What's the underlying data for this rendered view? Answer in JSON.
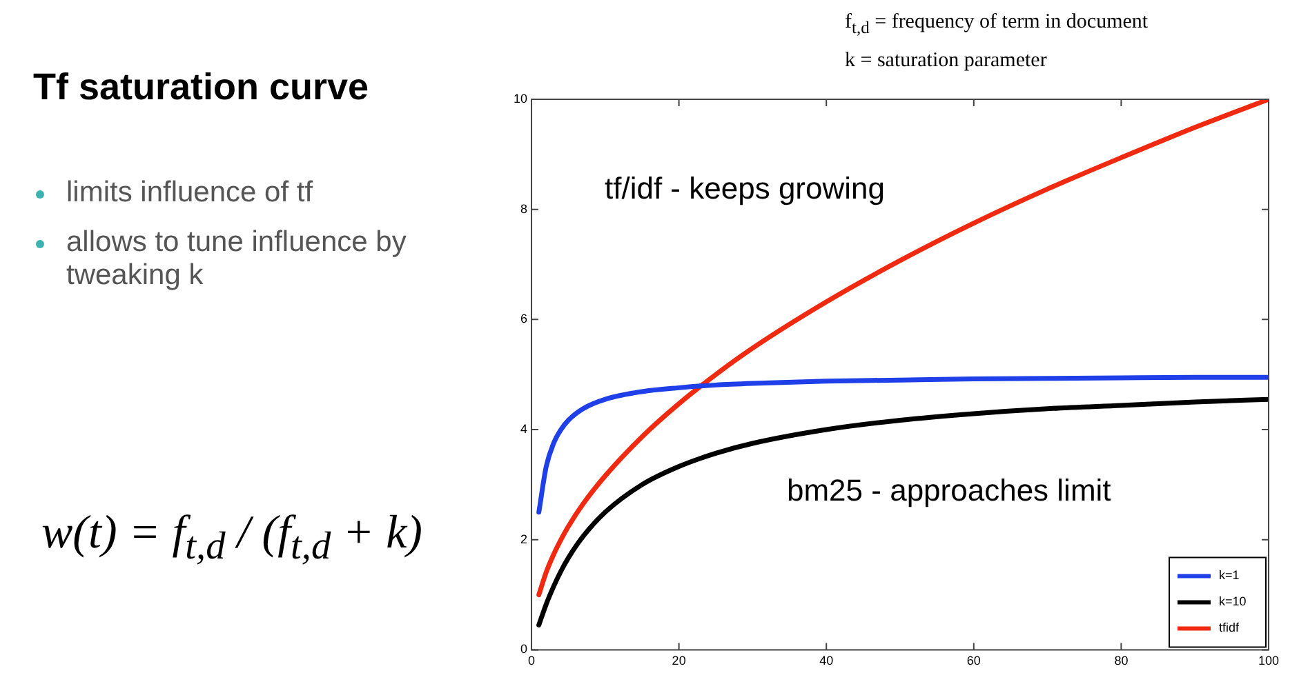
{
  "chart_data": {
    "type": "line",
    "title": "Tf saturation curve",
    "annotations": [
      "limits influence of tf",
      "allows to tune influence by tweaking k",
      "w(t) = f$_{t,d}$ / (f$_{t,d}$ + k)",
      "f$_{t,d}$ = frequency of term in document",
      "k = saturation parameter",
      "tf/idf - keeps growing",
      "bm25 - approaches limit"
    ],
    "x": [
      1,
      2,
      3,
      4,
      5,
      7,
      10,
      15,
      20,
      25,
      30,
      40,
      50,
      60,
      70,
      80,
      90,
      100
    ],
    "series": [
      {
        "name": "k=1",
        "color": "#1f3fe8",
        "values": [
          2.5,
          3.33,
          3.75,
          4.0,
          4.17,
          4.38,
          4.55,
          4.69,
          4.76,
          4.81,
          4.84,
          4.88,
          4.9,
          4.92,
          4.93,
          4.94,
          4.95,
          4.95
        ]
      },
      {
        "name": "k=10",
        "color": "#000000",
        "values": [
          0.45,
          0.83,
          1.15,
          1.43,
          1.67,
          2.06,
          2.5,
          3.0,
          3.33,
          3.57,
          3.75,
          4.0,
          4.17,
          4.29,
          4.38,
          4.44,
          4.5,
          4.55
        ]
      },
      {
        "name": "tfidf",
        "color": "#f02a10",
        "values": [
          1,
          1.41,
          1.73,
          2,
          2.24,
          2.65,
          3.16,
          3.87,
          4.47,
          5,
          5.48,
          6.32,
          7.07,
          7.75,
          8.37,
          8.94,
          9.49,
          10
        ]
      }
    ],
    "xlim": [
      0,
      100
    ],
    "xticks": [
      0,
      20,
      40,
      60,
      80,
      100
    ],
    "ylim": [
      0,
      10
    ],
    "yticks": [
      0,
      2,
      4,
      6,
      8,
      10
    ],
    "legend": "bottom right",
    "marker": "none",
    "line_style": "solid"
  }
}
